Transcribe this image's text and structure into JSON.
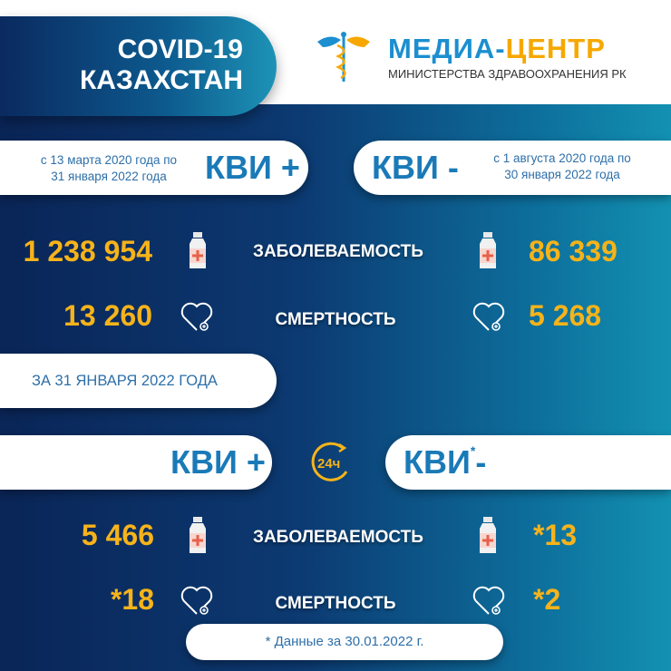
{
  "header": {
    "title_line1": "COVID-19",
    "title_line2": "КАЗАХСТАН",
    "logo_part1": "МЕДИА-",
    "logo_part2": "ЦЕНТР",
    "logo_sub": "МИНИСТЕРСТВА ЗДРАВООХРАНЕНИЯ РК"
  },
  "total": {
    "pos_period_1": "с 13 марта 2020 года по",
    "pos_period_2": "31 января 2022 года",
    "pos_label": "КВИ +",
    "neg_label": "КВИ -",
    "neg_period_1": "с 1 августа 2020 года по",
    "neg_period_2": "30 января 2022 года",
    "incidence_label": "ЗАБОЛЕВАЕМОСТЬ",
    "mortality_label": "СМЕРТНОСТЬ",
    "pos_cases": "1 238 954",
    "neg_cases": "86 339",
    "pos_deaths": "13 260",
    "neg_deaths": "5 268"
  },
  "daily": {
    "date_label": "ЗА 31 ЯНВАРЯ 2022 ГОДА",
    "pos_label": "КВИ +",
    "neg_label": "КВИ",
    "neg_star": "*",
    "neg_sign": "-",
    "badge": "24ч",
    "incidence_label": "ЗАБОЛЕВАЕМОСТЬ",
    "mortality_label": "СМЕРТНОСТЬ",
    "pos_cases": "5 466",
    "neg_cases": "*13",
    "pos_deaths": "*18",
    "neg_deaths": "*2"
  },
  "footnote": "* Данные за 30.01.2022 г.",
  "colors": {
    "accent_orange": "#f6b31a",
    "brand_blue": "#1a7ab8",
    "bg_dark": "#0a2557",
    "bg_light": "#1391b2"
  },
  "icons": [
    "caduceus-icon",
    "medicine-bottle-icon",
    "heart-icon",
    "24h-clock-icon"
  ]
}
